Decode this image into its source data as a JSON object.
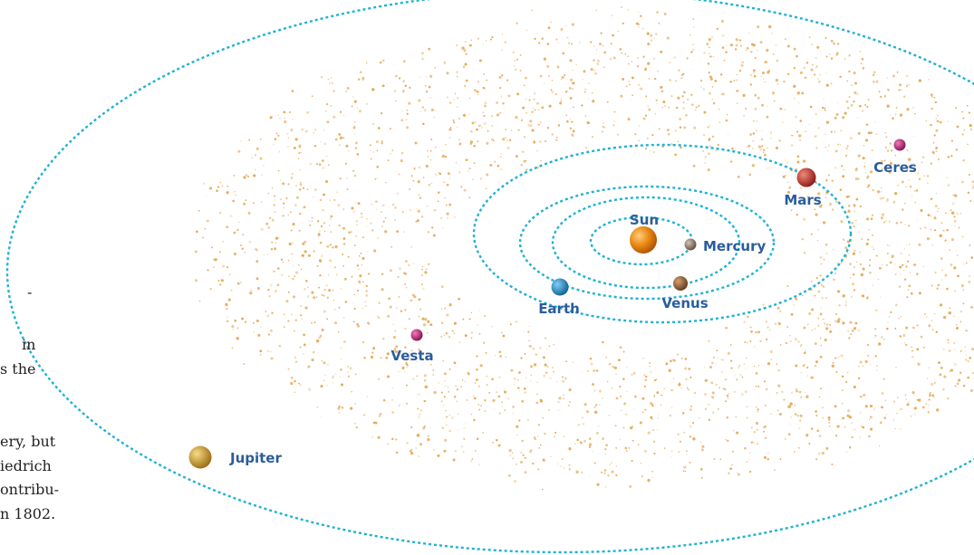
{
  "colors": {
    "orbit": "#1fb2d4",
    "label": "#2a5d9c",
    "asteroids": "#e5ad5e",
    "body_text": "#231f20"
  },
  "side_text_fragments": [
    "-",
    "in",
    "s the",
    "ery, but",
    "iedrich",
    "ontribu-",
    "n 1802."
  ],
  "bodies": {
    "sun": {
      "label": "Sun",
      "color": "#e8840f"
    },
    "mercury": {
      "label": "Mercury",
      "color": "#8a7466"
    },
    "venus": {
      "label": "Venus",
      "color": "#8a5a32"
    },
    "earth": {
      "label": "Earth",
      "color": "#1a88c9"
    },
    "mars": {
      "label": "Mars",
      "color": "#c9302c"
    },
    "ceres": {
      "label": "Ceres",
      "color": "#c01a78"
    },
    "vesta": {
      "label": "Vesta",
      "color": "#c01a78"
    },
    "jupiter": {
      "label": "Jupiter",
      "color": "#d9a52b"
    }
  }
}
